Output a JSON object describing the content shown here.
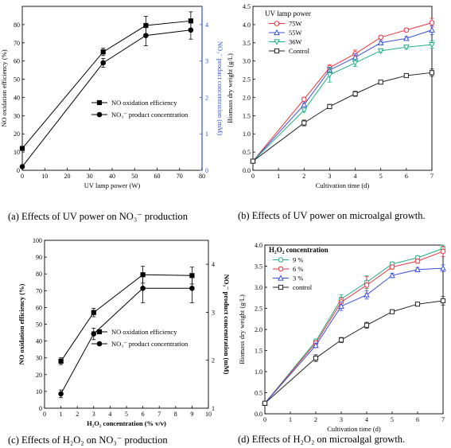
{
  "captions": {
    "a": "(a) Effects of UV power on NO₃⁻ production",
    "b": "(b) Effects of UV power on microalgal growth.",
    "c": "(c) Effects of H₂O₂ on NO₃⁻ production",
    "d": "(d) Effects of H₂O₂ on microalgal growth."
  },
  "chart_data": [
    {
      "id": "a",
      "type": "line",
      "xlabel": "UV lamp power (W)",
      "ylabel": "NO oxidation efficiency (%)",
      "y2label": "NO₃⁻ product concentration (mM)",
      "xlim": [
        0,
        80
      ],
      "xticks": [
        0,
        10,
        20,
        30,
        40,
        50,
        60,
        70,
        80
      ],
      "ylim": [
        0,
        90
      ],
      "yticks": [
        0,
        10,
        20,
        30,
        40,
        50,
        60,
        70,
        80
      ],
      "y2lim": [
        0,
        4.5
      ],
      "y2ticks": [
        0,
        1,
        2,
        3,
        4
      ],
      "legend_position": "center-right",
      "colors": {
        "axis_right": "#3355cc",
        "line": "#000000"
      },
      "series": [
        {
          "name": "NO oxidation efficiency",
          "marker": "square",
          "axis": "left",
          "x": [
            0,
            36,
            55,
            75
          ],
          "y": [
            12,
            65,
            79.5,
            82
          ],
          "err": [
            0,
            2,
            5,
            5
          ]
        },
        {
          "name": "NO₃⁻ product concentration",
          "marker": "circle",
          "axis": "right",
          "x": [
            0,
            36,
            55,
            75
          ],
          "y": [
            0.1,
            2.95,
            3.7,
            3.85
          ],
          "err": [
            0,
            0.12,
            0.28,
            0.25
          ]
        }
      ]
    },
    {
      "id": "b",
      "type": "line",
      "xlabel": "Cultivation time (d)",
      "ylabel": "Biomass dry weight (g/L)",
      "xlim": [
        0,
        7
      ],
      "xticks": [
        0,
        1,
        2,
        3,
        4,
        5,
        6,
        7
      ],
      "ylim": [
        0,
        4.5
      ],
      "yticks": [
        0,
        0.5,
        1.0,
        1.5,
        2.0,
        2.5,
        3.0,
        3.5,
        4.0,
        4.5
      ],
      "legend_title": "UV lamp power",
      "legend_position": "top-left",
      "series": [
        {
          "name": "75W",
          "color": "#e8343c",
          "marker": "circle",
          "x": [
            0,
            2,
            3,
            4,
            5,
            6,
            7
          ],
          "y": [
            0.25,
            1.95,
            2.82,
            3.2,
            3.65,
            3.85,
            4.05
          ],
          "err": [
            0,
            0.05,
            0.08,
            0.1,
            0.05,
            0.05,
            0.12
          ]
        },
        {
          "name": "55W",
          "color": "#3a4fd8",
          "marker": "triangle",
          "x": [
            0,
            2,
            3,
            4,
            5,
            6,
            7
          ],
          "y": [
            0.25,
            1.8,
            2.75,
            3.1,
            3.5,
            3.62,
            3.85
          ],
          "err": [
            0,
            0.05,
            0.08,
            0.1,
            0.05,
            0.05,
            0.12
          ]
        },
        {
          "name": "36W",
          "color": "#1fae84",
          "marker": "triangle-down",
          "x": [
            0,
            2,
            3,
            4,
            5,
            6,
            7
          ],
          "y": [
            0.25,
            1.65,
            2.62,
            2.95,
            3.28,
            3.38,
            3.45
          ],
          "err": [
            0,
            0.05,
            0.2,
            0.1,
            0.05,
            0.05,
            0.1
          ]
        },
        {
          "name": "Control",
          "color": "#222222",
          "marker": "square",
          "x": [
            0,
            2,
            3,
            4,
            5,
            6,
            7
          ],
          "y": [
            0.25,
            1.3,
            1.75,
            2.1,
            2.42,
            2.6,
            2.68
          ],
          "err": [
            0,
            0.08,
            0.06,
            0.07,
            0.04,
            0.04,
            0.1
          ]
        }
      ]
    },
    {
      "id": "c",
      "type": "line",
      "xlabel": "H₂O₂ concentration (% v/v)",
      "ylabel": "NO oxidation efficiency (%)",
      "y2label": "NO₃⁻ product concentration (mM)",
      "xlim": [
        0,
        10
      ],
      "xticks": [
        0,
        1,
        2,
        3,
        4,
        5,
        6,
        7,
        8,
        9,
        10
      ],
      "ylim": [
        0,
        100
      ],
      "yticks": [
        0,
        10,
        20,
        30,
        40,
        50,
        60,
        70,
        80,
        90,
        100
      ],
      "y2lim": [
        1,
        4.5
      ],
      "y2ticks": [
        1,
        2,
        3,
        4
      ],
      "legend_position": "center-right",
      "colors": {
        "line": "#000000"
      },
      "series": [
        {
          "name": "NO oxidation efficiency",
          "marker": "square",
          "axis": "left",
          "x": [
            1,
            3,
            6,
            9
          ],
          "y": [
            28,
            57,
            79.5,
            79
          ],
          "err": [
            2,
            2.5,
            5,
            5
          ]
        },
        {
          "name": "NO₃⁻ product concentration",
          "marker": "circle",
          "axis": "right",
          "x": [
            1,
            3,
            6,
            9
          ],
          "y": [
            1.3,
            2.55,
            3.5,
            3.5
          ],
          "err": [
            0.08,
            0.12,
            0.3,
            0.3
          ]
        }
      ]
    },
    {
      "id": "d",
      "type": "line",
      "xlabel": "Cultivation time (d)",
      "ylabel": "Biomass dry weight (g/L)",
      "xlim": [
        0,
        7
      ],
      "xticks": [
        0,
        1,
        2,
        3,
        4,
        5,
        6,
        7
      ],
      "ylim": [
        0,
        4.0
      ],
      "yticks": [
        0,
        0.5,
        1.0,
        1.5,
        2.0,
        2.5,
        3.0,
        3.5,
        4.0
      ],
      "legend_title": "H₂O₂ concentration",
      "legend_position": "top-left",
      "series": [
        {
          "name": "9 %",
          "color": "#1fae84",
          "marker": "circle",
          "x": [
            0,
            2,
            3,
            4,
            5,
            6,
            7
          ],
          "y": [
            0.25,
            1.72,
            2.72,
            3.12,
            3.55,
            3.7,
            3.92
          ],
          "err": [
            0,
            0.05,
            0.1,
            0.15,
            0.05,
            0.05,
            0.08
          ]
        },
        {
          "name": "6 %",
          "color": "#e8343c",
          "marker": "circle",
          "x": [
            0,
            2,
            3,
            4,
            5,
            6,
            7
          ],
          "y": [
            0.25,
            1.68,
            2.65,
            3.05,
            3.48,
            3.62,
            3.85
          ],
          "err": [
            0,
            0.05,
            0.1,
            0.2,
            0.05,
            0.05,
            0.12
          ]
        },
        {
          "name": "3 %",
          "color": "#3a4fd8",
          "marker": "triangle",
          "x": [
            0,
            2,
            3,
            4,
            5,
            6,
            7
          ],
          "y": [
            0.25,
            1.62,
            2.55,
            2.82,
            3.28,
            3.42,
            3.45
          ],
          "err": [
            0,
            0.05,
            0.1,
            0.1,
            0.05,
            0.05,
            0.08
          ]
        },
        {
          "name": "control",
          "color": "#222222",
          "marker": "square",
          "x": [
            0,
            2,
            3,
            4,
            5,
            6,
            7
          ],
          "y": [
            0.25,
            1.32,
            1.75,
            2.1,
            2.42,
            2.6,
            2.68
          ],
          "err": [
            0,
            0.08,
            0.06,
            0.07,
            0.04,
            0.04,
            0.1
          ]
        }
      ]
    }
  ]
}
